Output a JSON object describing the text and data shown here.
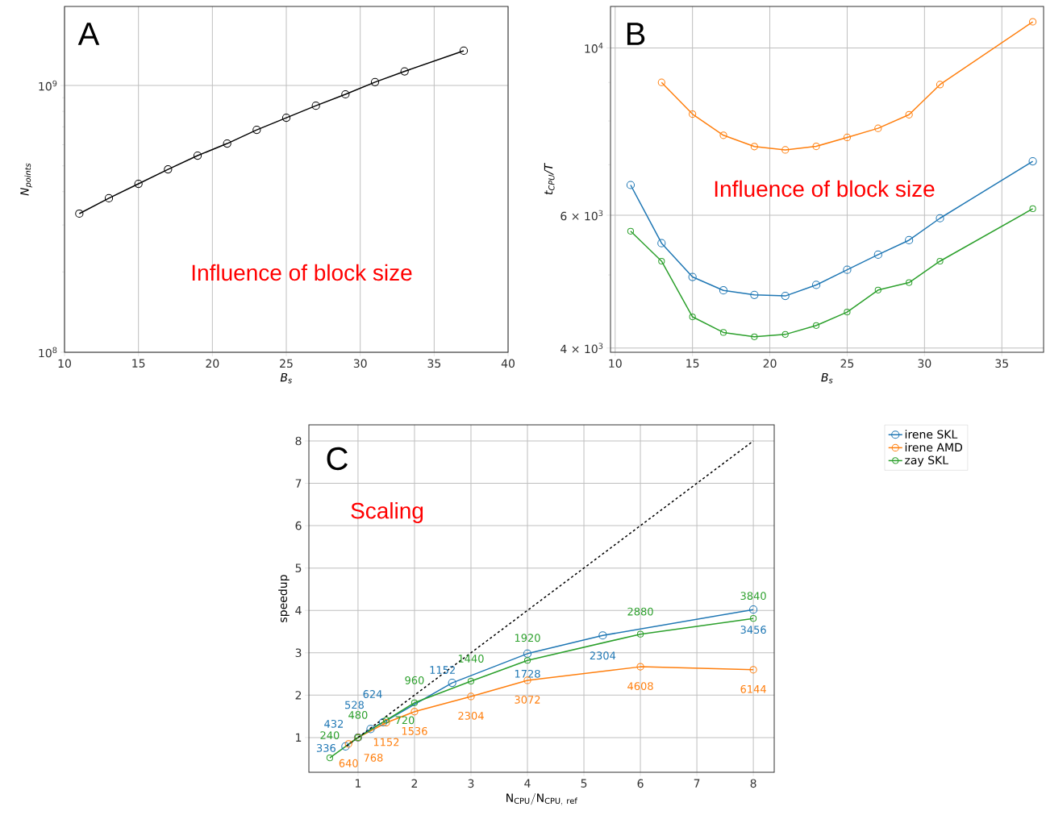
{
  "chart_data": [
    {
      "type": "line",
      "xlabel": "B$_{s}$",
      "ylabel": "N$_{points}$",
      "annotations": [
        "A",
        "Influence of block size"
      ],
      "log": true,
      "grid": true,
      "marker": "circle",
      "x": [
        11,
        13,
        15,
        17,
        19,
        21,
        23,
        25,
        27,
        29,
        31,
        33,
        37
      ],
      "series": [
        {
          "color": "#000000",
          "values": [
            331000000,
            378000000,
            428000000,
            485000000,
            546000000,
            606000000,
            682000000,
            757000000,
            840000000,
            927000000,
            1030000000,
            1130000000,
            1350000000
          ]
        }
      ],
      "xlim": [
        10,
        40
      ],
      "xticks": [
        10,
        15,
        20,
        25,
        30,
        35,
        40
      ],
      "ylim": [
        100000000,
        1980000000
      ],
      "yticks": [
        {
          "value": 100000000,
          "label": "10$^{8}$"
        },
        {
          "value": 200000000,
          "label": null
        },
        {
          "value": 300000000,
          "label": null
        },
        {
          "value": 400000000,
          "label": null
        },
        {
          "value": 500000000,
          "label": null
        },
        {
          "value": 600000000,
          "label": null
        },
        {
          "value": 700000000,
          "label": null
        },
        {
          "value": 800000000,
          "label": null
        },
        {
          "value": 900000000,
          "label": null
        },
        {
          "value": 1000000000,
          "label": "10$^{9}$"
        }
      ]
    },
    {
      "type": "line",
      "xlabel": "B$_{s}$",
      "ylabel": "t$_{CPU}$/T",
      "annotations": [
        "B",
        "Influence of block size"
      ],
      "log": true,
      "grid": true,
      "marker": "circle",
      "x": [
        11,
        13,
        15,
        17,
        19,
        21,
        23,
        25,
        27,
        29,
        31,
        37
      ],
      "series": [
        {
          "color": "#1f77b4",
          "values": [
            6580,
            5510,
            4970,
            4770,
            4705,
            4690,
            4850,
            5080,
            5320,
            5560,
            5945,
            7075
          ]
        },
        {
          "color": "#ff7f0e",
          "values": [
            null,
            9000,
            8170,
            7660,
            7400,
            7325,
            7405,
            7610,
            7825,
            8155,
            8940,
            10830
          ]
        },
        {
          "color": "#2ca02c",
          "values": [
            5715,
            5215,
            4400,
            4195,
            4140,
            4170,
            4285,
            4465,
            4775,
            4885,
            5215,
            6120
          ]
        }
      ],
      "xlim": [
        9.7,
        37.7
      ],
      "xticks": [
        10,
        15,
        20,
        25,
        30,
        35
      ],
      "ylim": [
        3950,
        11350
      ],
      "yticks": [
        {
          "value": 4000,
          "label": "4 × 10$^{3}$"
        },
        {
          "value": 5000,
          "label": null
        },
        {
          "value": 6000,
          "label": "6 × 10$^{3}$"
        },
        {
          "value": 7000,
          "label": null
        },
        {
          "value": 8000,
          "label": null
        },
        {
          "value": 9000,
          "label": null
        },
        {
          "value": 10000,
          "label": "10$^{4}$"
        }
      ]
    },
    {
      "type": "line",
      "xlabel": "\\mathrm{N_{CPU}/N_{CPU,\\ ref}}",
      "ylabel": "speedup",
      "grid": true,
      "marker": "circle",
      "legend": "top right",
      "annotations": [
        "C",
        "Scaling",
        {
          "text": "336",
          "x": 0.778,
          "y": 0.79
        },
        {
          "text": "432",
          "x": 1,
          "y": 1.0
        },
        {
          "text": "528",
          "x": 1.222,
          "y": 1.2
        },
        {
          "text": "624",
          "x": 1.444,
          "y": 1.36
        },
        {
          "text": "1152",
          "x": 2.667,
          "y": 2.29
        },
        {
          "text": "1728",
          "x": 4,
          "y": 2.98
        },
        {
          "text": "2304",
          "x": 5.333,
          "y": 3.41
        },
        {
          "text": "3456",
          "x": 8,
          "y": 4.02
        },
        {
          "text": "640",
          "x": 0.833,
          "y": 0.85
        },
        {
          "text": "768",
          "x": 1,
          "y": 1.0
        },
        {
          "text": "1152",
          "x": 1.5,
          "y": 1.35
        },
        {
          "text": "1536",
          "x": 2,
          "y": 1.61
        },
        {
          "text": "2304",
          "x": 3,
          "y": 1.97
        },
        {
          "text": "3072",
          "x": 4,
          "y": 2.35
        },
        {
          "text": "4608",
          "x": 6,
          "y": 2.67
        },
        {
          "text": "6144",
          "x": 8,
          "y": 2.6
        },
        {
          "text": "240",
          "x": 0.5,
          "y": 0.52
        },
        {
          "text": "480",
          "x": 1,
          "y": 1.0
        },
        {
          "text": "720",
          "x": 1.5,
          "y": 1.41
        },
        {
          "text": "960",
          "x": 2,
          "y": 1.82
        },
        {
          "text": "1440",
          "x": 3,
          "y": 2.33
        },
        {
          "text": "1920",
          "x": 4,
          "y": 2.82
        },
        {
          "text": "2880",
          "x": 6,
          "y": 3.44
        },
        {
          "text": "3840",
          "x": 8,
          "y": 3.81
        }
      ],
      "series": [
        {
          "name": "irene SKL",
          "color": "#1f77b4",
          "x": [
            0.778,
            1,
            1.222,
            1.444,
            2.667,
            4,
            5.333,
            8
          ],
          "values": [
            0.79,
            1.0,
            1.2,
            1.36,
            2.29,
            2.98,
            3.41,
            4.02
          ]
        },
        {
          "name": "irene AMD",
          "color": "#ff7f0e",
          "x": [
            0.833,
            1,
            1.5,
            2,
            3,
            4,
            6,
            8
          ],
          "values": [
            0.85,
            1.0,
            1.35,
            1.61,
            1.97,
            2.35,
            2.67,
            2.6
          ]
        },
        {
          "name": "zay SKL",
          "color": "#2ca02c",
          "x": [
            0.5,
            1,
            1.5,
            2,
            3,
            4,
            6,
            8
          ],
          "values": [
            0.52,
            1.0,
            1.41,
            1.82,
            2.33,
            2.82,
            3.44,
            3.81
          ]
        },
        {
          "color": "#000000",
          "x": [
            0.8,
            8
          ],
          "values": [
            0.8,
            8
          ],
          "marker": "none",
          "line_style": "dashed"
        }
      ],
      "xlim": [
        0.13,
        8.37
      ],
      "xticks": [
        1,
        2,
        3,
        4,
        5,
        6,
        7,
        8
      ],
      "ylim": [
        0.18,
        8.38
      ],
      "yticks": [
        1,
        2,
        3,
        4,
        5,
        6,
        7,
        8
      ]
    }
  ]
}
